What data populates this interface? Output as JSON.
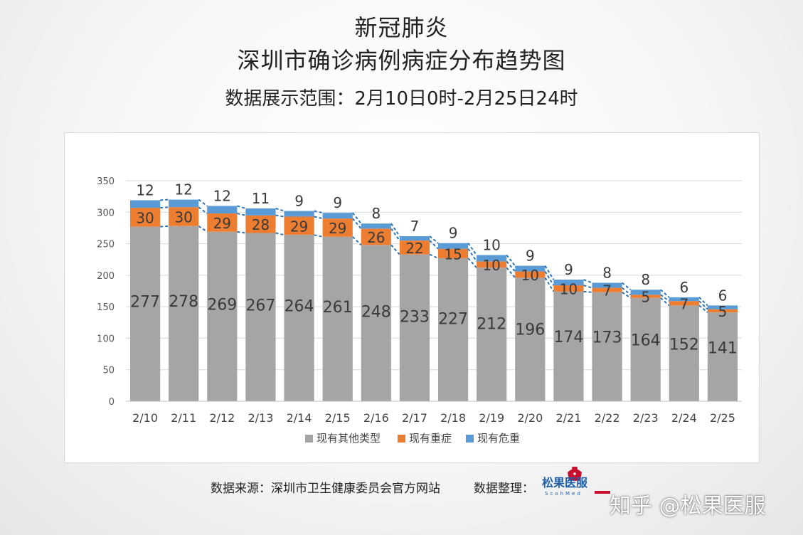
{
  "header": {
    "title_line1": "新冠肺炎",
    "title_line2": "深圳市确诊病例病症分布趋势图",
    "subtitle": "数据展示范围：2月10日0时-2月25日24时"
  },
  "footer": {
    "source": "数据来源：深圳市卫生健康委员会官方网站",
    "curator_label": "数据整理：",
    "logo_text": "松果医服",
    "logo_sub": "ScohMed",
    "watermark": "知乎 @松果医服"
  },
  "colors": {
    "other": "#a5a5a5",
    "severe": "#ed7d31",
    "critical": "#5b9bd5",
    "connector": "#2e75b6",
    "grid": "#d9d9d9",
    "logo_red": "#c8102e",
    "logo_blue": "#1f5fa8"
  },
  "chart_data": {
    "type": "bar",
    "stacked": true,
    "categories": [
      "2/10",
      "2/11",
      "2/12",
      "2/13",
      "2/14",
      "2/15",
      "2/16",
      "2/17",
      "2/18",
      "2/19",
      "2/20",
      "2/21",
      "2/22",
      "2/23",
      "2/24",
      "2/25"
    ],
    "series": [
      {
        "name": "现有其他类型",
        "color": "#a5a5a5",
        "values": [
          277,
          278,
          269,
          267,
          264,
          261,
          248,
          233,
          227,
          212,
          196,
          174,
          173,
          164,
          152,
          141
        ]
      },
      {
        "name": "现有重症",
        "color": "#ed7d31",
        "values": [
          30,
          30,
          29,
          28,
          29,
          29,
          26,
          22,
          15,
          10,
          10,
          10,
          7,
          5,
          7,
          5
        ]
      },
      {
        "name": "现有危重",
        "color": "#5b9bd5",
        "values": [
          12,
          12,
          12,
          11,
          9,
          9,
          8,
          7,
          9,
          10,
          9,
          9,
          8,
          8,
          6,
          6
        ]
      }
    ],
    "ylim": [
      0,
      350
    ],
    "yticks": [
      0,
      50,
      100,
      150,
      200,
      250,
      300,
      350
    ],
    "grid": true,
    "legend_position": "bottom"
  }
}
